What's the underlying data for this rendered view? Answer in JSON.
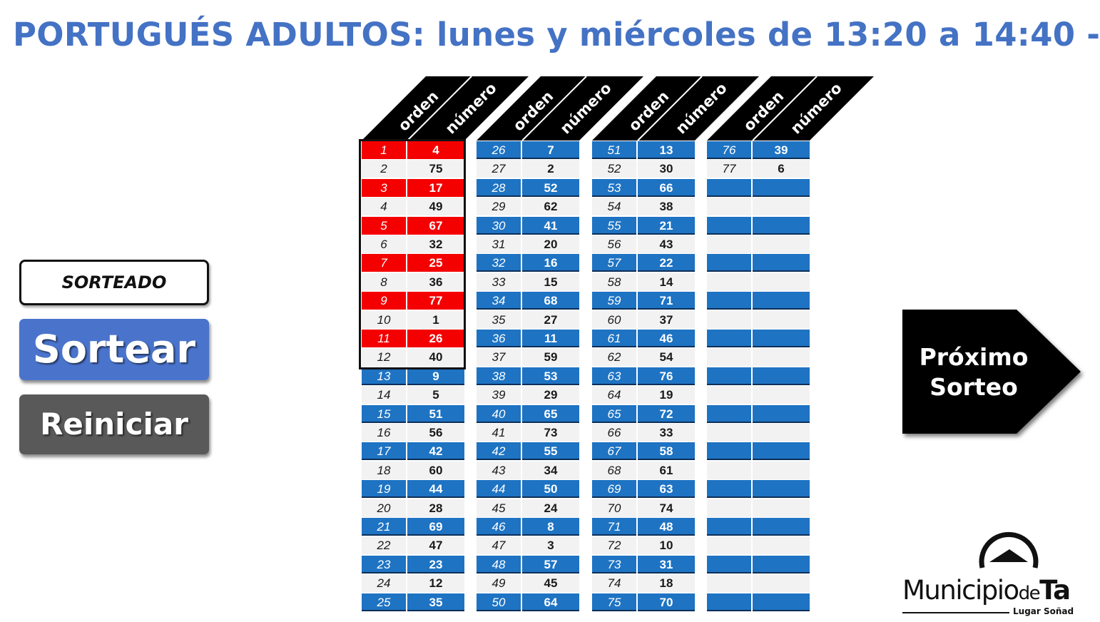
{
  "title": "PORTUGUÉS ADULTOS: lunes y miércoles de 13:20 a 14:40 -",
  "buttons": {
    "sorteado_label": "SORTEADO",
    "sortear_label": "Sortear",
    "reiniciar_label": "Reiniciar",
    "proximo_label": "Próximo\nSorteo"
  },
  "column_headers": [
    "orden",
    "número"
  ],
  "colors": {
    "blue": "#1e73c3",
    "red": "#f40000",
    "title_blue": "#4472c4",
    "header_black": "#000000"
  },
  "drawn_count": 12,
  "columns": [
    {
      "orden": [
        "1",
        "2",
        "3",
        "4",
        "5",
        "6",
        "7",
        "8",
        "9",
        "10",
        "11",
        "12",
        "13",
        "14",
        "15",
        "16",
        "17",
        "18",
        "19",
        "20",
        "21",
        "22",
        "23",
        "24",
        "25"
      ],
      "numero": [
        "4",
        "75",
        "17",
        "49",
        "67",
        "32",
        "25",
        "36",
        "77",
        "1",
        "26",
        "40",
        "9",
        "5",
        "51",
        "56",
        "42",
        "60",
        "44",
        "28",
        "69",
        "47",
        "23",
        "12",
        "35"
      ]
    },
    {
      "orden": [
        "26",
        "27",
        "28",
        "29",
        "30",
        "31",
        "32",
        "33",
        "34",
        "35",
        "36",
        "37",
        "38",
        "39",
        "40",
        "41",
        "42",
        "43",
        "44",
        "45",
        "46",
        "47",
        "48",
        "49",
        "50"
      ],
      "numero": [
        "7",
        "2",
        "52",
        "62",
        "41",
        "20",
        "16",
        "15",
        "68",
        "27",
        "11",
        "59",
        "53",
        "29",
        "65",
        "73",
        "55",
        "34",
        "50",
        "24",
        "8",
        "3",
        "57",
        "45",
        "64"
      ]
    },
    {
      "orden": [
        "51",
        "52",
        "53",
        "54",
        "55",
        "56",
        "57",
        "58",
        "59",
        "60",
        "61",
        "62",
        "63",
        "64",
        "65",
        "66",
        "67",
        "68",
        "69",
        "70",
        "71",
        "72",
        "73",
        "74",
        "75"
      ],
      "numero": [
        "13",
        "30",
        "66",
        "38",
        "21",
        "43",
        "22",
        "14",
        "71",
        "37",
        "46",
        "54",
        "76",
        "19",
        "72",
        "33",
        "58",
        "61",
        "63",
        "74",
        "48",
        "10",
        "31",
        "18",
        "70"
      ]
    },
    {
      "orden": [
        "76",
        "77",
        "",
        "",
        "",
        "",
        "",
        "",
        "",
        "",
        "",
        "",
        "",
        "",
        "",
        "",
        "",
        "",
        "",
        "",
        "",
        "",
        "",
        "",
        ""
      ],
      "numero": [
        "39",
        "6",
        "",
        "",
        "",
        "",
        "",
        "",
        "",
        "",
        "",
        "",
        "",
        "",
        "",
        "",
        "",
        "",
        "",
        "",
        "",
        "",
        "",
        "",
        ""
      ]
    }
  ],
  "logo": {
    "name_a": "Municipio",
    "name_b": "de",
    "name_c": "Ta",
    "tagline": "Lugar Soñad"
  }
}
